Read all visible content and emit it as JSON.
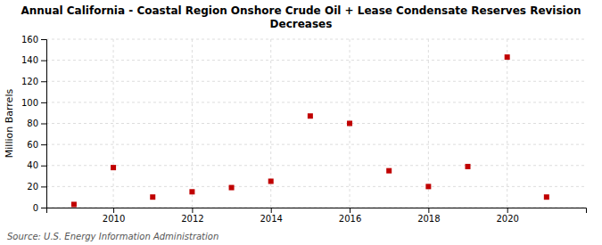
{
  "chart_data": {
    "type": "scatter",
    "title": "Annual California - Coastal Region Onshore Crude Oil + Lease Condensate Reserves Revision\nDecreases",
    "y_label": "Million Barrels",
    "annotation": "Source: U.S. Energy Information Administration",
    "x": [
      2009,
      2010,
      2011,
      2012,
      2013,
      2014,
      2015,
      2016,
      2017,
      2018,
      2019,
      2020,
      2021
    ],
    "values": [
      3,
      38,
      10,
      15,
      19,
      25,
      87,
      80,
      35,
      20,
      39,
      143,
      10
    ],
    "color": "#c00000",
    "marker": "square",
    "xlim": [
      2008.3,
      2022.0
    ],
    "xticks": [
      2010,
      2012,
      2014,
      2016,
      2018,
      2020
    ],
    "ylim": [
      0,
      160
    ],
    "yticks": [
      0,
      20,
      40,
      60,
      80,
      100,
      120,
      140,
      160
    ],
    "grid": true
  }
}
